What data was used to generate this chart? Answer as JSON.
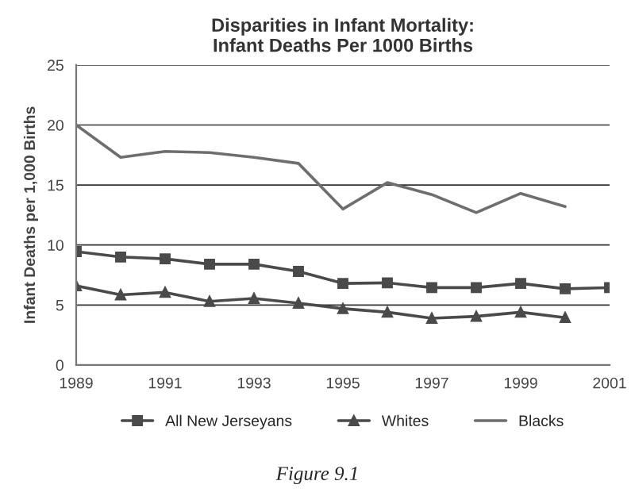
{
  "chart_data": {
    "type": "line",
    "title": "Disparities in Infant Mortality:\nInfant Deaths Per 1000 Births",
    "ylabel": "Infant Deaths per 1,000 Births",
    "x": [
      1989,
      1990,
      1991,
      1992,
      1993,
      1994,
      1995,
      1996,
      1997,
      1998,
      1999,
      2000,
      2001
    ],
    "series": [
      {
        "name": "All New Jerseyans",
        "color": "#4a4a4a",
        "marker": "square",
        "values": [
          9.45,
          9.0,
          8.85,
          8.4,
          8.4,
          7.8,
          6.8,
          6.85,
          6.45,
          6.45,
          6.8,
          6.35,
          6.45
        ]
      },
      {
        "name": "Whites",
        "color": "#4a4a4a",
        "marker": "triangle",
        "values": [
          6.6,
          5.85,
          6.05,
          5.3,
          5.55,
          5.15,
          4.7,
          4.4,
          3.9,
          4.05,
          4.4,
          3.95,
          null
        ]
      },
      {
        "name": "Blacks",
        "color": "#6e6e6e",
        "marker": "none",
        "values": [
          20.0,
          17.3,
          17.8,
          17.7,
          17.3,
          16.8,
          13.0,
          15.2,
          14.2,
          12.7,
          14.3,
          13.2,
          null
        ]
      }
    ],
    "xlim": [
      1989,
      2001
    ],
    "xticks": [
      1989,
      1991,
      1993,
      1995,
      1997,
      1999,
      2001
    ],
    "ylim": [
      0,
      25
    ],
    "yticks": [
      0,
      5,
      10,
      15,
      20,
      25
    ],
    "grid": "y",
    "legend": "bottom",
    "line_style": "solid",
    "annotations": [
      "Figure 9.1"
    ]
  }
}
